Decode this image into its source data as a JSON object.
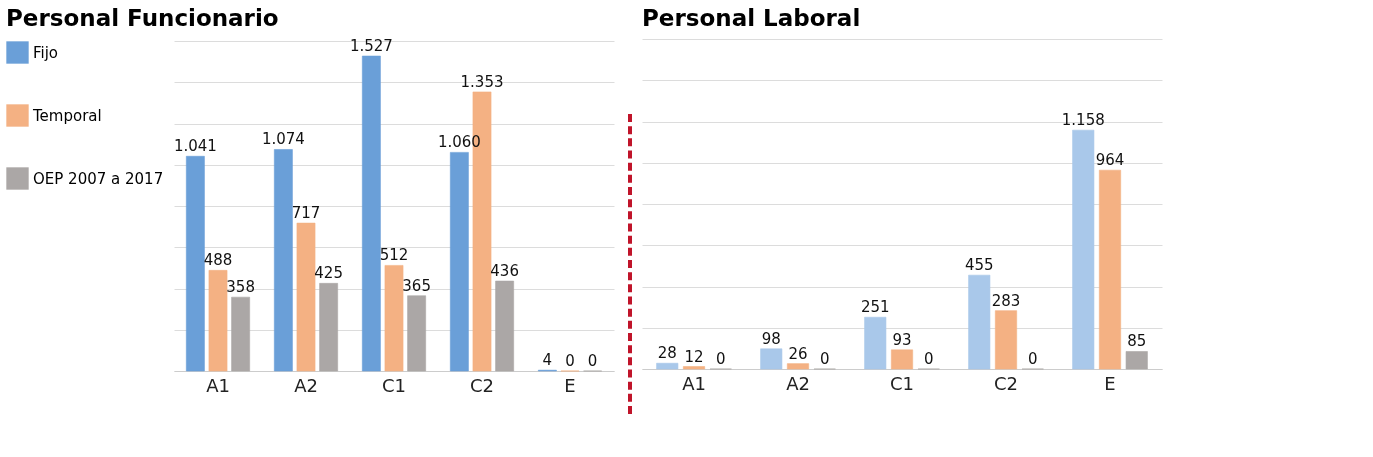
{
  "chart_data": [
    {
      "type": "bar",
      "title": "Personal Funcionario",
      "categories": [
        "A1",
        "A2",
        "C1",
        "C2",
        "E"
      ],
      "ylim": [
        0,
        1600
      ],
      "yticks": [
        {
          "value": 0,
          "label": null
        },
        {
          "value": 200,
          "label": null
        },
        {
          "value": 400,
          "label": null
        },
        {
          "value": 600,
          "label": null
        },
        {
          "value": 800,
          "label": null
        },
        {
          "value": 1000,
          "label": null
        },
        {
          "value": 1200,
          "label": null
        },
        {
          "value": 1400,
          "label": null
        },
        {
          "value": 1600,
          "label": null
        }
      ],
      "tick_labels": "x",
      "grid": "y",
      "legend": "left",
      "series": [
        {
          "name": "Fijo",
          "color": "#6a9fd8",
          "values": [
            1041,
            1074,
            1527,
            1060,
            4
          ],
          "value_labels": [
            "1.041",
            "1.074",
            "1.527",
            "1.060",
            "4"
          ]
        },
        {
          "name": "Temporal",
          "color": "#f4b183",
          "values": [
            488,
            717,
            512,
            1353,
            0
          ],
          "value_labels": [
            "488",
            "717",
            "512",
            "1.353",
            "0"
          ]
        },
        {
          "name": "OEP 2007 a 2017",
          "color": "#aba7a6",
          "values": [
            358,
            425,
            365,
            436,
            0
          ],
          "value_labels": [
            "358",
            "425",
            "365",
            "436",
            "0"
          ]
        }
      ]
    },
    {
      "type": "bar",
      "title": "Personal Laboral",
      "categories": [
        "A1",
        "A2",
        "C1",
        "C2",
        "E"
      ],
      "ylim": [
        0,
        1600
      ],
      "yticks": [
        {
          "value": 0,
          "label": null
        },
        {
          "value": 200,
          "label": null
        },
        {
          "value": 400,
          "label": null
        },
        {
          "value": 600,
          "label": null
        },
        {
          "value": 800,
          "label": null
        },
        {
          "value": 1000,
          "label": null
        },
        {
          "value": 1200,
          "label": null
        },
        {
          "value": 1400,
          "label": null
        },
        {
          "value": 1600,
          "label": null
        }
      ],
      "tick_labels": "x",
      "grid": "y",
      "series": [
        {
          "color": "#a9c8ea",
          "values": [
            28,
            98,
            251,
            455,
            1158
          ],
          "value_labels": [
            "28",
            "98",
            "251",
            "455",
            "1.158"
          ]
        },
        {
          "color": "#f4b183",
          "values": [
            12,
            26,
            93,
            283,
            964
          ],
          "value_labels": [
            "12",
            "26",
            "93",
            "283",
            "964"
          ]
        },
        {
          "color": "#aba7a6",
          "values": [
            0,
            0,
            0,
            0,
            85
          ],
          "value_labels": [
            "0",
            "0",
            "0",
            "0",
            "85"
          ]
        }
      ]
    }
  ]
}
